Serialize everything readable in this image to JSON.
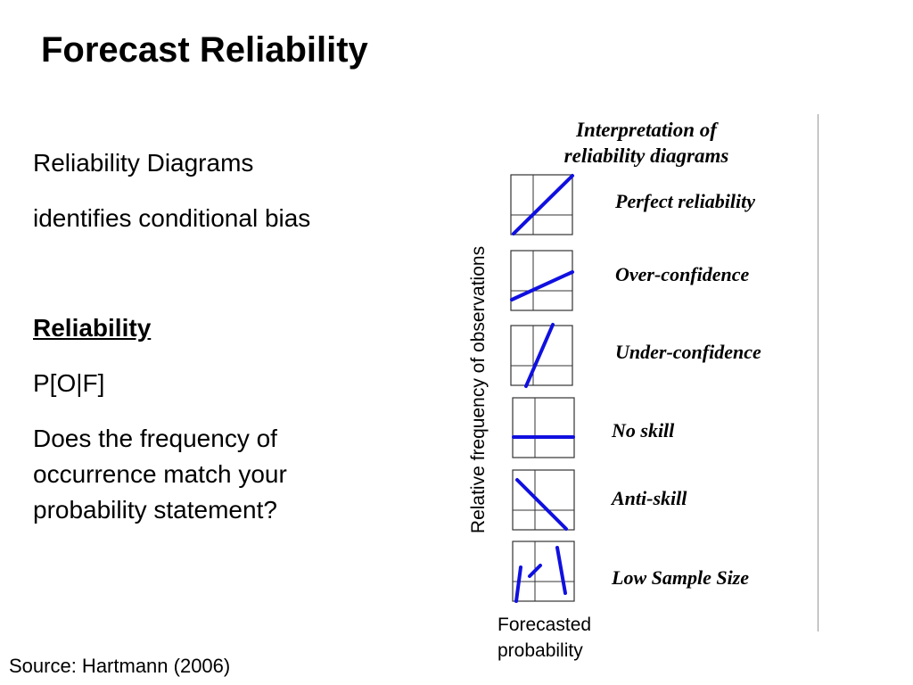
{
  "slide": {
    "title": "Forecast Reliability",
    "left": {
      "line1": "Reliability Diagrams",
      "line2": "identifies conditional bias",
      "heading": "Reliability",
      "formula": "P[O|F]",
      "question": "Does the frequency of occurrence match your probability statement?"
    },
    "source": "Source: Hartmann (2006)"
  },
  "figure": {
    "heading": "Interpretation of reliability diagrams",
    "y_axis_label": "Relative frequency of observations",
    "x_axis_label": "Forecasted probability",
    "line_color": "#1010e0",
    "rows": [
      {
        "label": "Perfect reliability"
      },
      {
        "label": "Over-confidence"
      },
      {
        "label": "Under-confidence"
      },
      {
        "label": "No skill"
      },
      {
        "label": "Anti-skill"
      },
      {
        "label": "Low Sample Size"
      }
    ]
  }
}
